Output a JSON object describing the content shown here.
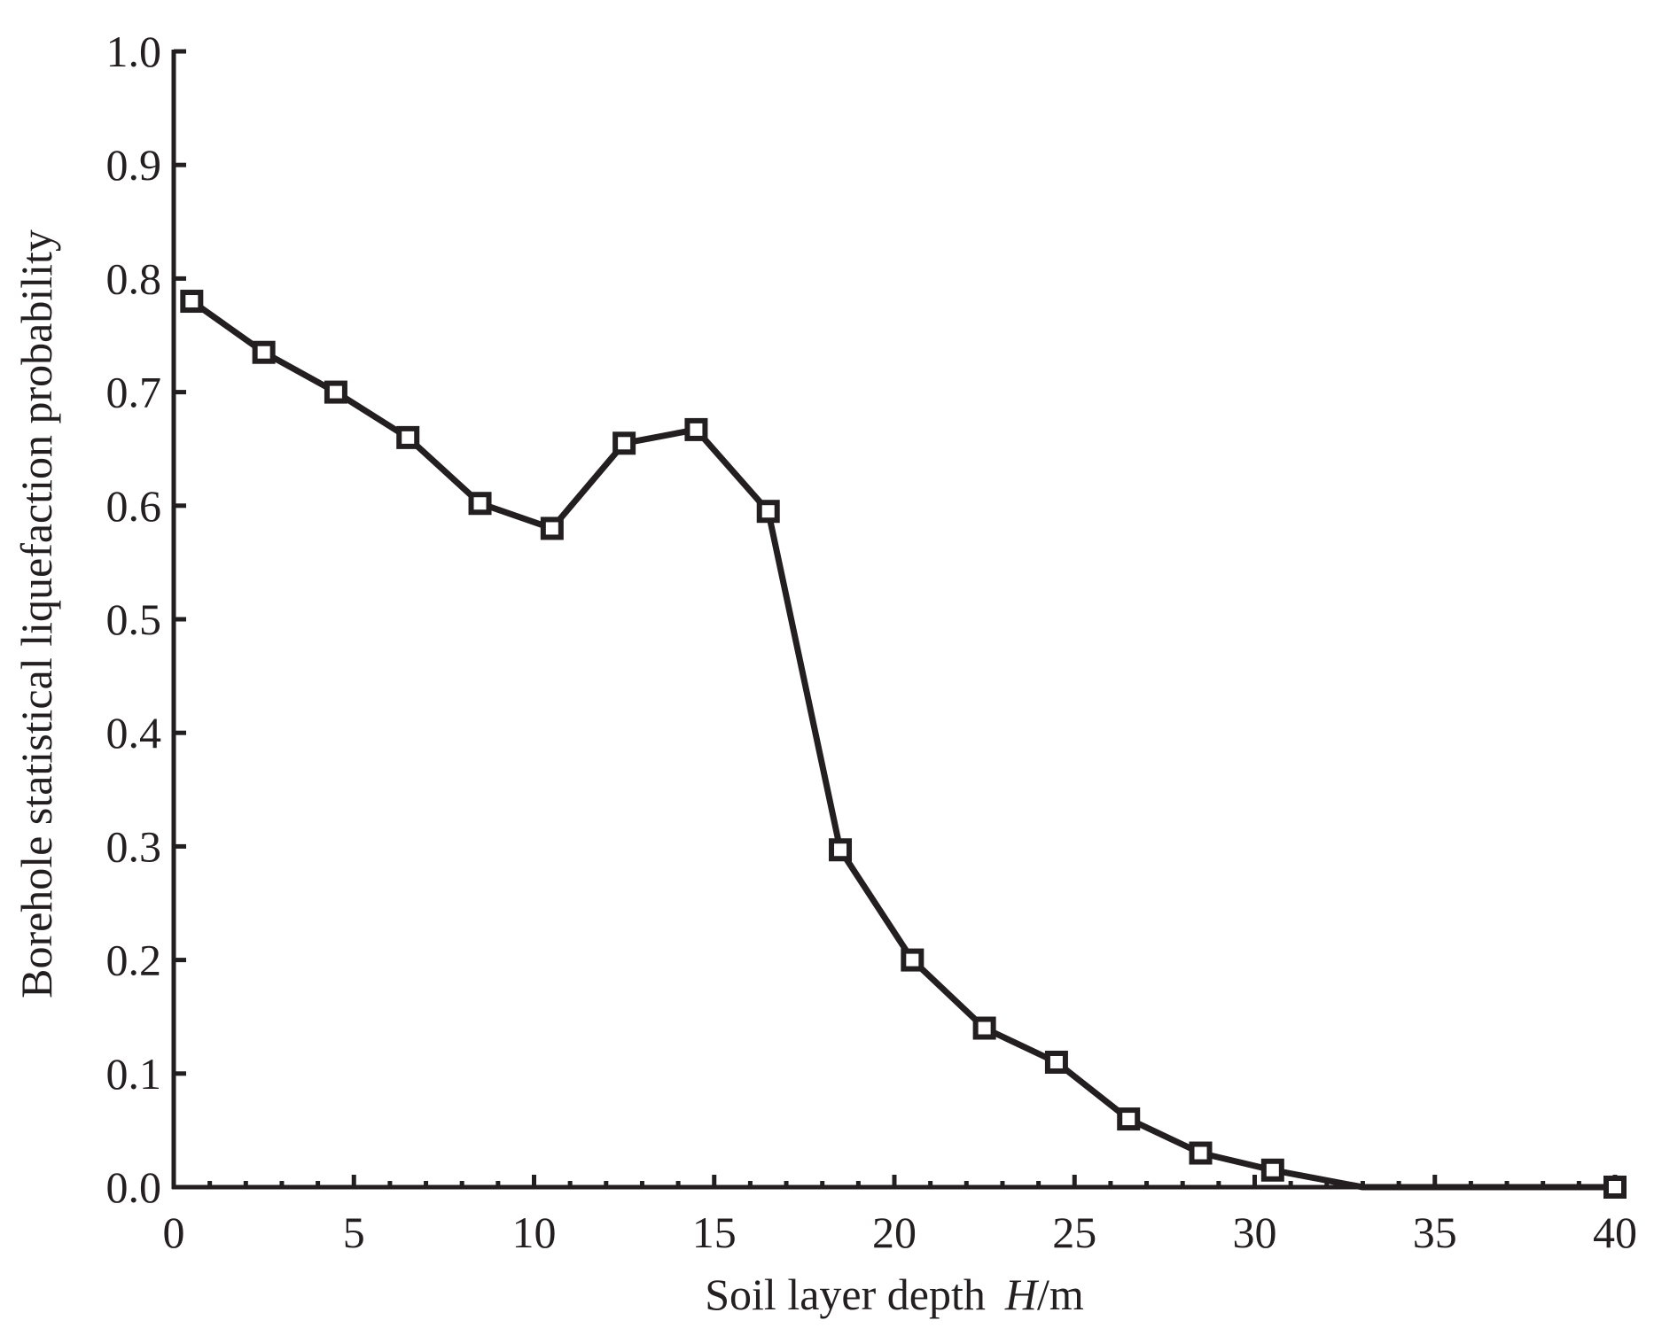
{
  "chart_data": {
    "type": "line",
    "title": "",
    "xlabel_prefix": "Soil layer depth",
    "xlabel_symbol": "H",
    "xlabel_unit": "/m",
    "ylabel": "Borehole statistical liquefaction probability",
    "xlim": [
      0,
      40
    ],
    "ylim": [
      0.0,
      1.0
    ],
    "x_ticks": [
      0,
      5,
      10,
      15,
      20,
      25,
      30,
      35,
      40
    ],
    "x_tick_labels": [
      "0",
      "5",
      "10",
      "15",
      "20",
      "25",
      "30",
      "35",
      "40"
    ],
    "x_minor_step": 1,
    "y_ticks": [
      0.0,
      0.1,
      0.2,
      0.3,
      0.4,
      0.5,
      0.6,
      0.7,
      0.8,
      0.9,
      1.0
    ],
    "y_tick_labels": [
      "0.0",
      "0.1",
      "0.2",
      "0.3",
      "0.4",
      "0.5",
      "0.6",
      "0.7",
      "0.8",
      "0.9",
      "1.0"
    ],
    "grid": false,
    "legend": "none",
    "line_color": "#231f20",
    "marker": "hollow-square",
    "series": [
      {
        "x": [
          0.5,
          2.5,
          4.5,
          6.5,
          8.5,
          10.5,
          12.5,
          14.5,
          16.5,
          18.5,
          20.5,
          22.5,
          24.5,
          26.5,
          28.5,
          30.5,
          33.0,
          35.0,
          40.0
        ],
        "y": [
          0.78,
          0.735,
          0.7,
          0.66,
          0.602,
          0.58,
          0.655,
          0.667,
          0.595,
          0.297,
          0.2,
          0.14,
          0.11,
          0.06,
          0.03,
          0.015,
          0.0,
          0.0,
          0.0
        ],
        "markers": [
          true,
          true,
          true,
          true,
          true,
          true,
          true,
          true,
          true,
          true,
          true,
          true,
          true,
          true,
          true,
          true,
          false,
          false,
          true
        ]
      }
    ]
  }
}
